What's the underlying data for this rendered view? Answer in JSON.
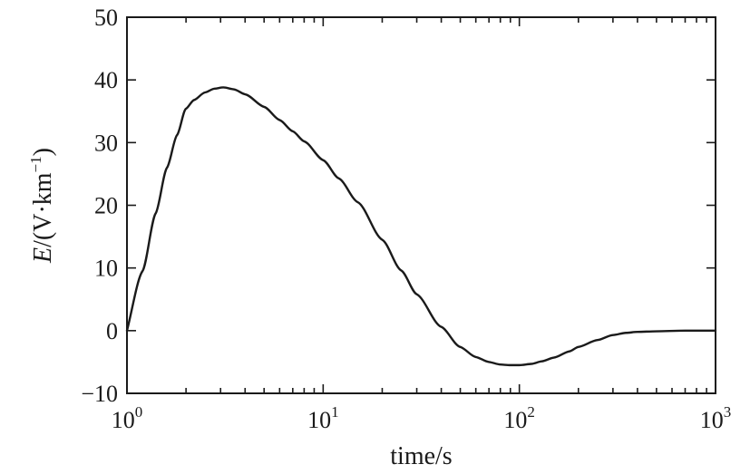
{
  "chart_data": {
    "type": "line",
    "title": "",
    "xlabel": "time/s",
    "ylabel": {
      "var": "E",
      "unit_open": "/(V·km",
      "unit_exp": "−1",
      "unit_close": ")"
    },
    "xscale": "log",
    "xlim": [
      1,
      1000
    ],
    "ylim": [
      -10,
      50
    ],
    "x_ticks": [
      {
        "value": 1,
        "base": "10",
        "exp": "0"
      },
      {
        "value": 10,
        "base": "10",
        "exp": "1"
      },
      {
        "value": 100,
        "base": "10",
        "exp": "2"
      },
      {
        "value": 1000,
        "base": "10",
        "exp": "3"
      }
    ],
    "y_ticks": [
      {
        "value": -10,
        "label": "−10"
      },
      {
        "value": 0,
        "label": "0"
      },
      {
        "value": 10,
        "label": "10"
      },
      {
        "value": 20,
        "label": "20"
      },
      {
        "value": 30,
        "label": "30"
      },
      {
        "value": 40,
        "label": "40"
      },
      {
        "value": 50,
        "label": "50"
      }
    ],
    "grid": false,
    "line_color": "#1a1a1a",
    "series": [
      {
        "x": [
          1,
          1.2,
          1.4,
          1.6,
          1.8,
          2.0,
          2.2,
          2.5,
          2.8,
          3.1,
          3.5,
          4,
          5,
          6,
          7,
          8,
          10,
          12,
          15,
          20,
          25,
          30,
          40,
          50,
          60,
          70,
          80,
          90,
          100,
          115,
          130,
          150,
          180,
          200,
          250,
          300,
          350,
          400,
          500,
          700,
          1000
        ],
        "y": [
          0,
          9.5,
          18.7,
          26,
          31.2,
          35.4,
          36.8,
          38,
          38.6,
          38.8,
          38.5,
          37.7,
          35.7,
          33.6,
          31.8,
          30.2,
          27.2,
          24.3,
          20.5,
          14.5,
          9.6,
          5.8,
          0.6,
          -2.6,
          -4.2,
          -5.0,
          -5.4,
          -5.5,
          -5.5,
          -5.3,
          -4.9,
          -4.3,
          -3.3,
          -2.6,
          -1.5,
          -0.7,
          -0.35,
          -0.2,
          -0.1,
          0,
          0
        ]
      }
    ]
  }
}
